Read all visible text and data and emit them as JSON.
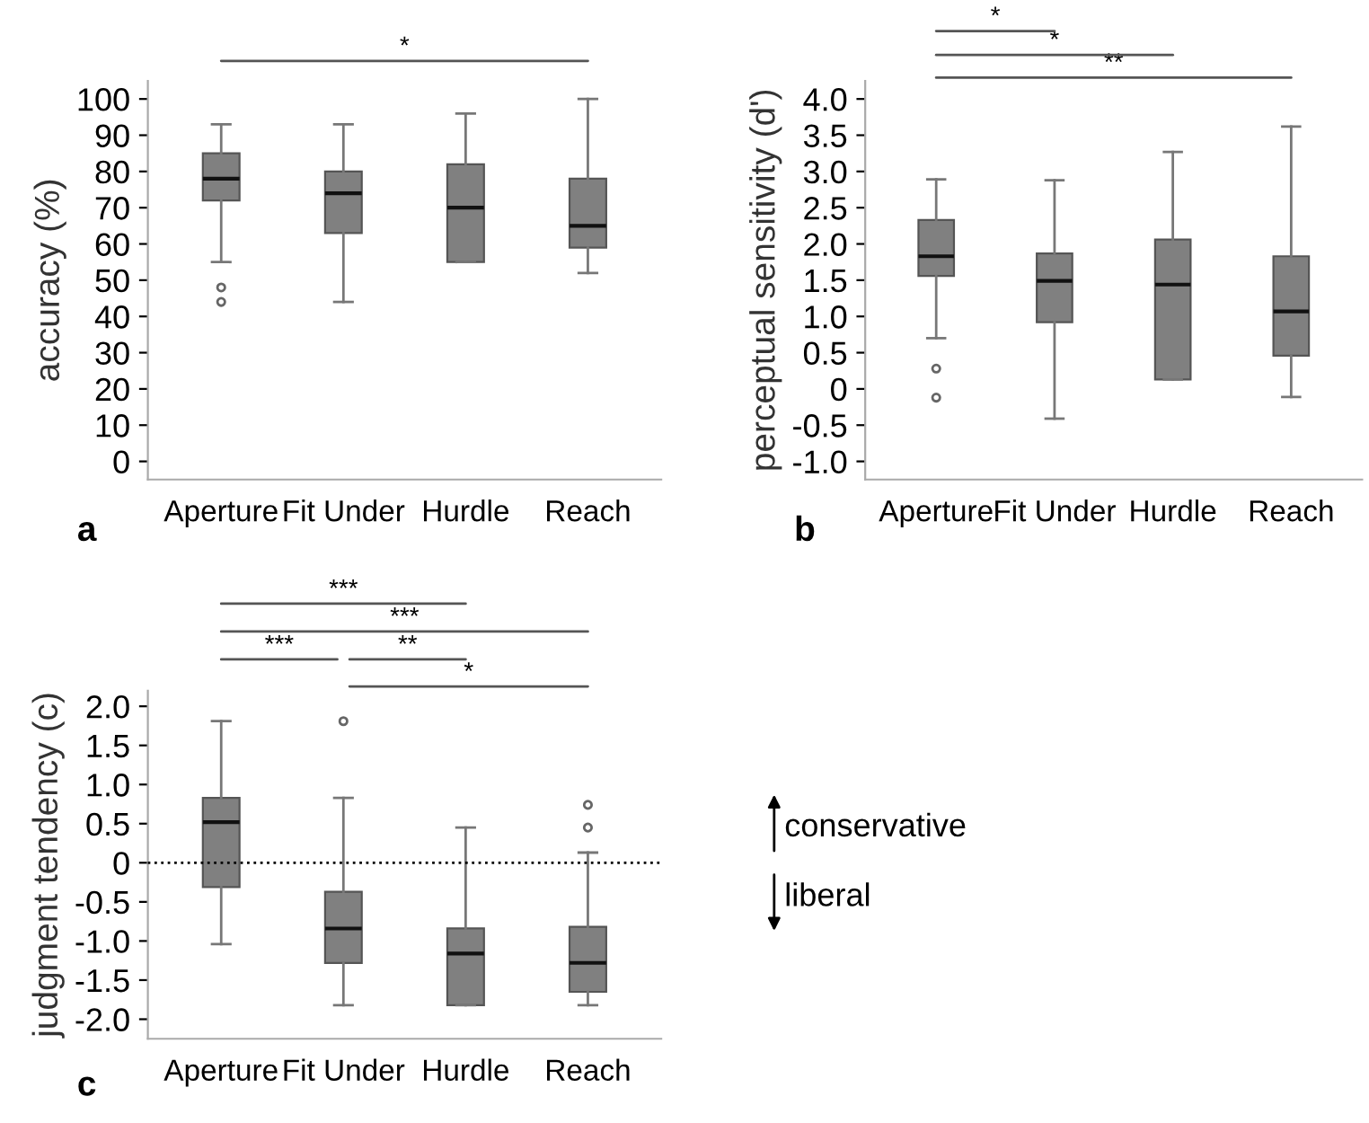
{
  "chart_data": [
    {
      "type": "box",
      "ylabel": "accuracy (%)",
      "categories": [
        "Aperture",
        "Fit Under",
        "Hurdle",
        "Reach"
      ],
      "color": "#808080",
      "boxes": [
        {
          "low": 55,
          "q1": 72,
          "median": 78,
          "q3": 85,
          "high": 93,
          "outliers": [
            48,
            44
          ]
        },
        {
          "low": 44,
          "q1": 63,
          "median": 74,
          "q3": 80,
          "high": 93
        },
        {
          "low": 55,
          "q1": 55,
          "median": 70,
          "q3": 82,
          "high": 96
        },
        {
          "low": 52,
          "q1": 59,
          "median": 65,
          "q3": 78,
          "high": 100
        }
      ],
      "ylim": [
        -5,
        105
      ],
      "yticks": [
        0,
        10,
        20,
        30,
        40,
        50,
        60,
        70,
        80,
        90,
        100
      ],
      "grid": false,
      "annotations": [
        "a",
        "*"
      ]
    },
    {
      "type": "box",
      "ylabel": "perceptual sensitivity (d')",
      "categories": [
        "Aperture",
        "Fit Under",
        "Hurdle",
        "Reach"
      ],
      "color": "#808080",
      "boxes": [
        {
          "low": 0.7,
          "q1": 1.56,
          "median": 1.83,
          "q3": 2.33,
          "high": 2.89,
          "outliers": [
            0.28,
            -0.12
          ]
        },
        {
          "low": -0.41,
          "q1": 0.92,
          "median": 1.49,
          "q3": 1.87,
          "high": 2.88
        },
        {
          "low": 0.13,
          "q1": 0.13,
          "median": 1.44,
          "q3": 2.06,
          "high": 3.27
        },
        {
          "low": -0.11,
          "q1": 0.46,
          "median": 1.07,
          "q3": 1.83,
          "high": 3.62
        }
      ],
      "ylim": [
        -1.25,
        4.25
      ],
      "yticks": [
        {
          "value": -1,
          "label": "-1.0"
        },
        {
          "value": -0.5,
          "label": "-0.5"
        },
        0,
        0.5,
        {
          "value": 1,
          "label": "1.0"
        },
        1.5,
        {
          "value": 2,
          "label": "2.0"
        },
        2.5,
        {
          "value": 3,
          "label": "3.0"
        },
        3.5,
        {
          "value": 4,
          "label": "4.0"
        }
      ],
      "grid": false,
      "annotations": [
        "b",
        "*",
        "*",
        "**"
      ]
    },
    {
      "type": "box",
      "ylabel": "judgment tendency (c)",
      "categories": [
        "Aperture",
        "Fit Under",
        "Hurdle",
        "Reach"
      ],
      "color": "#808080",
      "boxes": [
        {
          "low": -1.04,
          "q1": -0.31,
          "median": 0.52,
          "q3": 0.83,
          "high": 1.81
        },
        {
          "low": -1.82,
          "q1": -1.28,
          "median": -0.84,
          "q3": -0.37,
          "high": 0.83,
          "outliers": [
            1.81
          ]
        },
        {
          "low": -1.82,
          "q1": -1.82,
          "median": -1.16,
          "q3": -0.84,
          "high": 0.45
        },
        {
          "low": -1.82,
          "q1": -1.65,
          "median": -1.28,
          "q3": -0.82,
          "high": 0.13,
          "outliers": [
            0.74,
            0.45
          ]
        }
      ],
      "ylim": [
        -2.25,
        2.2
      ],
      "yticks": [
        {
          "value": -2,
          "label": "-2.0"
        },
        {
          "value": -1.5,
          "label": "-1.5"
        },
        {
          "value": -1,
          "label": "-1.0"
        },
        {
          "value": -0.5,
          "label": "-0.5"
        },
        0,
        0.5,
        {
          "value": 1,
          "label": "1.0"
        },
        1.5,
        {
          "value": 2,
          "label": "2.0"
        }
      ],
      "grid": false,
      "ref_lines": [
        {
          "axis": "y",
          "value": 0,
          "line_style": "dotted",
          "color": "#000000"
        }
      ],
      "annotations": [
        "c",
        "***",
        "***",
        "***",
        "**",
        "*",
        "conservative",
        "liberal"
      ]
    }
  ]
}
